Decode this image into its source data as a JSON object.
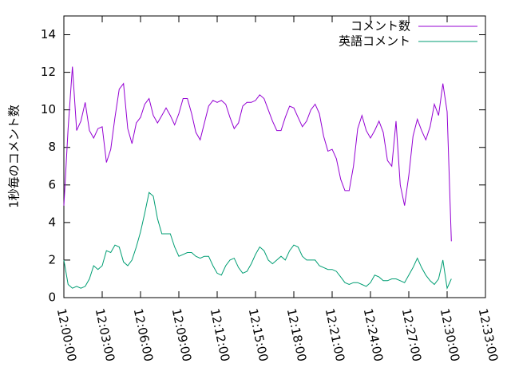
{
  "chart_data": {
    "type": "line",
    "y_label": "1秒毎のコメント数",
    "x": [
      "12:00:00",
      "12:00:20",
      "12:00:40",
      "12:01:00",
      "12:01:20",
      "12:01:40",
      "12:02:00",
      "12:02:20",
      "12:02:40",
      "12:03:00",
      "12:03:20",
      "12:03:40",
      "12:04:00",
      "12:04:20",
      "12:04:40",
      "12:05:00",
      "12:05:20",
      "12:05:40",
      "12:06:00",
      "12:06:20",
      "12:06:40",
      "12:07:00",
      "12:07:20",
      "12:07:40",
      "12:08:00",
      "12:08:20",
      "12:08:40",
      "12:09:00",
      "12:09:20",
      "12:09:40",
      "12:10:00",
      "12:10:20",
      "12:10:40",
      "12:11:00",
      "12:11:20",
      "12:11:40",
      "12:12:00",
      "12:12:20",
      "12:12:40",
      "12:13:00",
      "12:13:20",
      "12:13:40",
      "12:14:00",
      "12:14:20",
      "12:14:40",
      "12:15:00",
      "12:15:20",
      "12:15:40",
      "12:16:00",
      "12:16:20",
      "12:16:40",
      "12:17:00",
      "12:17:20",
      "12:17:40",
      "12:18:00",
      "12:18:20",
      "12:18:40",
      "12:19:00",
      "12:19:20",
      "12:19:40",
      "12:20:00",
      "12:20:20",
      "12:20:40",
      "12:21:00",
      "12:21:20",
      "12:21:40",
      "12:22:00",
      "12:22:20",
      "12:22:40",
      "12:23:00",
      "12:23:20",
      "12:23:40",
      "12:24:00",
      "12:24:20",
      "12:24:40",
      "12:25:00",
      "12:25:20",
      "12:25:40",
      "12:26:00",
      "12:26:20",
      "12:26:40",
      "12:27:00",
      "12:27:20",
      "12:27:40",
      "12:28:00",
      "12:28:20",
      "12:28:40",
      "12:29:00",
      "12:29:20",
      "12:29:40",
      "12:30:00",
      "12:30:20"
    ],
    "series": [
      {
        "name": "コメント数",
        "color": "#9400d3",
        "values": [
          4.9,
          9.0,
          12.3,
          8.9,
          9.4,
          10.4,
          8.9,
          8.5,
          9.0,
          9.1,
          7.2,
          7.9,
          9.6,
          11.1,
          11.4,
          9.0,
          8.2,
          9.3,
          9.6,
          10.3,
          10.6,
          9.7,
          9.3,
          9.7,
          10.1,
          9.7,
          9.2,
          9.8,
          10.6,
          10.6,
          9.8,
          8.8,
          8.4,
          9.3,
          10.2,
          10.5,
          10.4,
          10.5,
          10.3,
          9.6,
          9.0,
          9.3,
          10.2,
          10.4,
          10.4,
          10.5,
          10.8,
          10.6,
          10.0,
          9.4,
          8.9,
          8.9,
          9.6,
          10.2,
          10.1,
          9.6,
          9.1,
          9.4,
          10.0,
          10.3,
          9.8,
          8.6,
          7.8,
          7.9,
          7.4,
          6.3,
          5.7,
          5.7,
          7.0,
          9.0,
          9.7,
          8.9,
          8.5,
          8.9,
          9.4,
          8.8,
          7.3,
          7.0,
          9.4,
          6.0,
          4.9,
          6.5,
          8.6,
          9.5,
          8.9,
          8.4,
          9.1,
          10.3,
          9.7,
          11.4,
          9.9,
          3.0
        ]
      },
      {
        "name": "英語コメント",
        "color": "#009e73",
        "values": [
          2.0,
          0.7,
          0.5,
          0.6,
          0.5,
          0.6,
          1.0,
          1.7,
          1.5,
          1.7,
          2.5,
          2.4,
          2.8,
          2.7,
          1.9,
          1.7,
          2.0,
          2.7,
          3.5,
          4.5,
          5.6,
          5.4,
          4.2,
          3.4,
          3.4,
          3.4,
          2.7,
          2.2,
          2.3,
          2.4,
          2.4,
          2.2,
          2.1,
          2.2,
          2.2,
          1.7,
          1.3,
          1.2,
          1.7,
          2.0,
          2.1,
          1.6,
          1.3,
          1.4,
          1.8,
          2.3,
          2.7,
          2.5,
          2.0,
          1.8,
          2.0,
          2.2,
          2.0,
          2.5,
          2.8,
          2.7,
          2.2,
          2.0,
          2.0,
          2.0,
          1.7,
          1.6,
          1.5,
          1.5,
          1.4,
          1.1,
          0.8,
          0.7,
          0.8,
          0.8,
          0.7,
          0.6,
          0.8,
          1.2,
          1.1,
          0.9,
          0.9,
          1.0,
          1.0,
          0.9,
          0.8,
          1.2,
          1.6,
          2.1,
          1.6,
          1.2,
          0.9,
          0.7,
          1.0,
          2.0,
          0.5,
          1.0
        ]
      }
    ],
    "xlim": [
      "12:00:00",
      "12:33:00"
    ],
    "xticks": [
      "12:00:00",
      "12:03:00",
      "12:06:00",
      "12:09:00",
      "12:12:00",
      "12:15:00",
      "12:18:00",
      "12:21:00",
      "12:24:00",
      "12:27:00",
      "12:30:00",
      "12:33:00"
    ],
    "ylim": [
      0,
      15
    ],
    "yticks": [
      0,
      2,
      4,
      6,
      8,
      10,
      12,
      14
    ],
    "grid": false,
    "legend": "top-right"
  }
}
